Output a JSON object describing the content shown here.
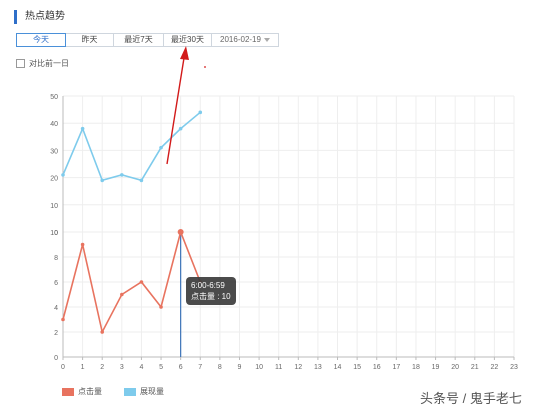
{
  "section_title": "热点趋势",
  "tabs": [
    {
      "label": "今天",
      "active": true
    },
    {
      "label": "昨天",
      "active": false
    },
    {
      "label": "最近7天",
      "active": false
    },
    {
      "label": "最近30天",
      "active": false
    }
  ],
  "date_picker": {
    "value": "2016-02-19",
    "icon": "chevron-down-icon"
  },
  "compare": {
    "label": "对比前一日",
    "checked": false
  },
  "tooltip": {
    "time": "6:00-6:59",
    "label": "点击量 : 10"
  },
  "watermark": "头条号 / 鬼手老七",
  "colors": {
    "clicks": "#e8735f",
    "impressions": "#7ecbec",
    "accent": "#2f6fc9",
    "hover_line": "#3c74b8",
    "annotation_arrow": "#d21a1a"
  },
  "chart_data": {
    "type": "line",
    "x": [
      0,
      1,
      2,
      3,
      4,
      5,
      6,
      7,
      8,
      9,
      10,
      11,
      12,
      13,
      14,
      15,
      16,
      17,
      18,
      19,
      20,
      21,
      22,
      23
    ],
    "xlim": [
      0,
      23
    ],
    "axes": [
      {
        "name": "upper",
        "ylim": [
          0,
          50
        ],
        "ticks": [
          0,
          10,
          20,
          30,
          40,
          50
        ]
      },
      {
        "name": "lower",
        "ylim": [
          0,
          10
        ],
        "ticks": [
          0,
          2,
          4,
          6,
          8,
          10
        ]
      }
    ],
    "series": [
      {
        "name": "点击量",
        "axis": "lower",
        "x": [
          0,
          1,
          2,
          3,
          4,
          5,
          6,
          7
        ],
        "values": [
          3,
          9,
          2,
          5,
          6,
          4,
          10,
          6
        ]
      },
      {
        "name": "展现量",
        "axis": "upper",
        "x": [
          0,
          1,
          2,
          3,
          4,
          5,
          6,
          7
        ],
        "values": [
          21,
          38,
          19,
          21,
          19,
          31,
          38,
          44
        ]
      }
    ],
    "highlight_x": 6,
    "grid": true,
    "legend_position": "bottom-left"
  }
}
